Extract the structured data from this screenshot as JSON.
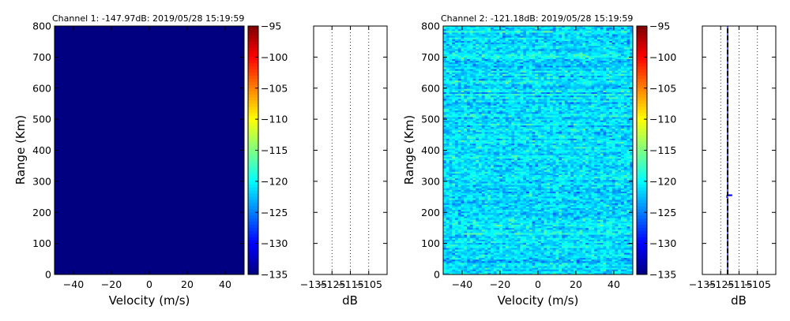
{
  "colormap": "jet",
  "chart_data": [
    {
      "type": "heatmap",
      "title": "Channel 1: -147.97dB: 2019/05/28 15:19:59",
      "xlabel": "Velocity (m/s)",
      "ylabel": "Range (Km)",
      "xlim": [
        -50,
        50
      ],
      "ylim": [
        0,
        800
      ],
      "x_ticks": [
        -40,
        -20,
        0,
        20,
        40
      ],
      "y_ticks": [
        0,
        100,
        200,
        300,
        400,
        500,
        600,
        700,
        800
      ],
      "colorbar": {
        "min": -135,
        "max": -95,
        "ticks": [
          -95,
          -100,
          -105,
          -110,
          -115,
          -120,
          -125,
          -130,
          -135
        ]
      },
      "fill_db": -148,
      "noise_mean_db": null,
      "noise_spread_db": 0,
      "grid": false
    },
    {
      "type": "line",
      "title": "",
      "xlabel": "dB",
      "ylabel": "",
      "xlim": [
        -135,
        -95
      ],
      "ylim": [
        0,
        800
      ],
      "x_ticks": [
        -135,
        -125,
        -115,
        -105
      ],
      "grid": "vertical dotted",
      "series": []
    },
    {
      "type": "heatmap",
      "title": "Channel 2: -121.18dB: 2019/05/28 15:19:59",
      "xlabel": "Velocity (m/s)",
      "ylabel": "Range (Km)",
      "xlim": [
        -50,
        50
      ],
      "ylim": [
        0,
        800
      ],
      "x_ticks": [
        -40,
        -20,
        0,
        20,
        40
      ],
      "y_ticks": [
        0,
        100,
        200,
        300,
        400,
        500,
        600,
        700,
        800
      ],
      "colorbar": {
        "min": -135,
        "max": -95,
        "ticks": [
          -95,
          -100,
          -105,
          -110,
          -115,
          -120,
          -125,
          -130,
          -135
        ]
      },
      "fill_db": null,
      "noise_mean_db": -121.2,
      "noise_spread_db": 3.2,
      "grid": false
    },
    {
      "type": "line",
      "title": "",
      "xlabel": "dB",
      "ylabel": "",
      "xlim": [
        -135,
        -95
      ],
      "ylim": [
        0,
        800
      ],
      "x_ticks": [
        -135,
        -125,
        -115,
        -105
      ],
      "grid": "vertical dotted",
      "series": [
        {
          "style": "solid-blue",
          "x": [
            -121.2,
            -121.2,
            -121.6,
            -121.6,
            -119,
            -119,
            -121.2,
            -121.2
          ],
          "y": [
            0,
            248,
            248,
            254,
            254,
            256,
            256,
            800
          ]
        },
        {
          "style": "dashed-black",
          "x": [
            -121.2,
            -121.2
          ],
          "y": [
            0,
            800
          ]
        }
      ]
    }
  ]
}
